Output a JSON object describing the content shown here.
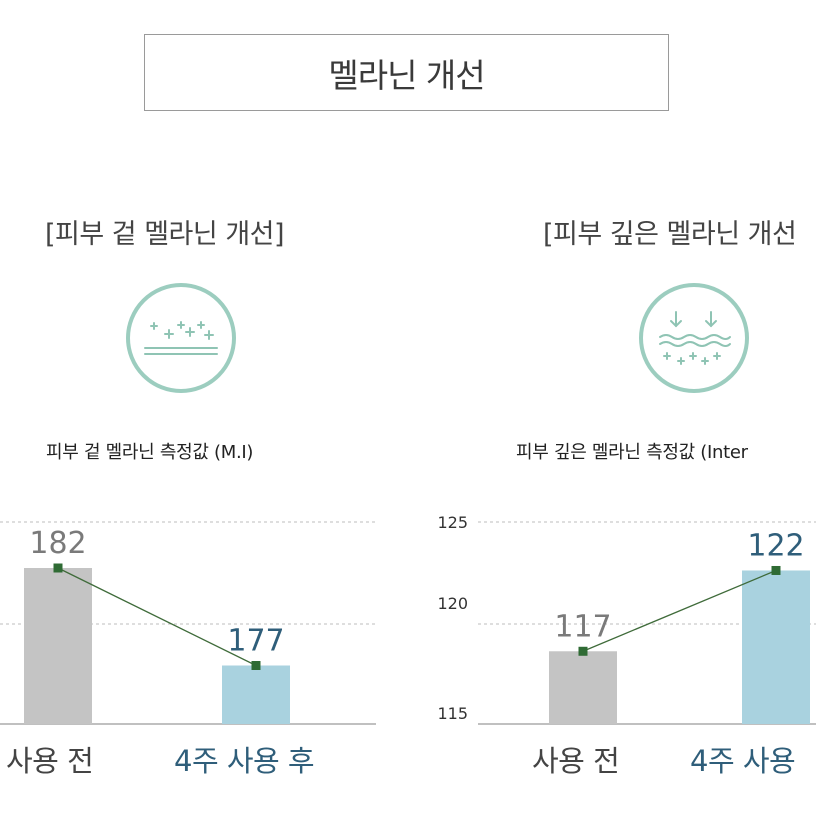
{
  "page_title": "멜라닌 개선",
  "panels": [
    {
      "title": "[피부 겉 멜라닌 개선]",
      "icon": "surface-sparkle-icon",
      "metric_label": "피부 겉 멜라닌 측정값 (M.I)"
    },
    {
      "title": "[피부 깊은 멜라닌 개선",
      "icon": "deep-arrows-icon",
      "metric_label": "피부 깊은 멜라닌 측정값 (Inter"
    }
  ],
  "colors": {
    "before_bar": "#c4c4c4",
    "after_bar": "#a9d2df",
    "line": "#3f6b3a",
    "marker": "#2f6b34",
    "after_text": "#2f5e7a",
    "before_text": "#7a7a7a",
    "icon": "#9ccdbf"
  },
  "chart_data": [
    {
      "type": "bar",
      "categories": [
        "사용 전",
        "4주 사용 후"
      ],
      "values": [
        182,
        177
      ],
      "data_labels": [
        "182",
        "177"
      ],
      "overlay": "line",
      "ylim": [
        174,
        186
      ],
      "grid": true
    },
    {
      "type": "bar",
      "categories": [
        "사용 전",
        "4주 사용"
      ],
      "values": [
        117,
        122
      ],
      "data_labels": [
        "117",
        "122"
      ],
      "overlay": "line",
      "yticks": [
        115,
        120,
        125
      ],
      "ylim": [
        115,
        125
      ],
      "grid": true
    }
  ]
}
